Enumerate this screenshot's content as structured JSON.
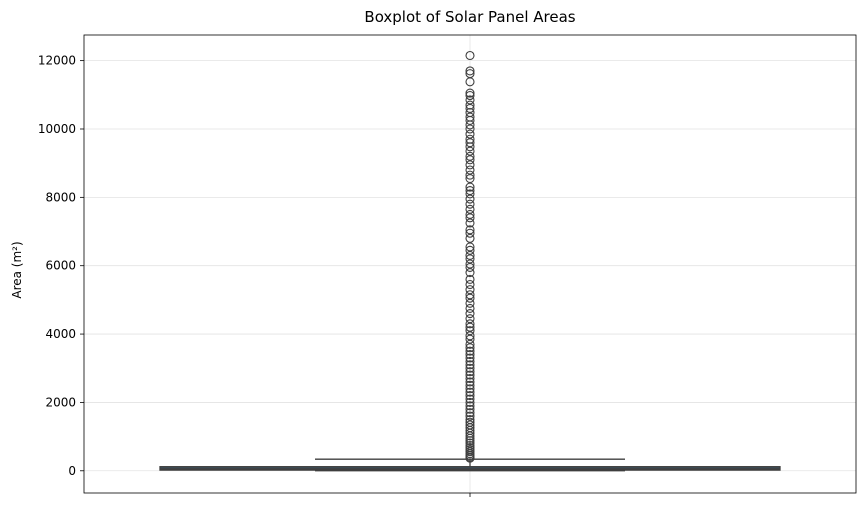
{
  "chart_data": {
    "type": "boxplot",
    "title": "Boxplot of Solar Panel Areas",
    "ylabel": "Area (m²)",
    "xlabel": "",
    "ylim": [
      -650,
      12750
    ],
    "yticks": [
      0,
      2000,
      4000,
      6000,
      8000,
      10000,
      12000
    ],
    "grid": true,
    "box": {
      "whislo": 0,
      "q1": 20,
      "median": 55,
      "q3": 120,
      "whishi": 340,
      "color": "#3a4f5c"
    },
    "fliers": [
      12150,
      11700,
      11620,
      11380,
      11050,
      10980,
      10850,
      10700,
      10600,
      10480,
      10350,
      10250,
      10120,
      10000,
      9850,
      9700,
      9600,
      9480,
      9350,
      9200,
      9100,
      8950,
      8800,
      8650,
      8550,
      8300,
      8200,
      8100,
      7950,
      7800,
      7650,
      7500,
      7400,
      7250,
      7050,
      6950,
      6800,
      6550,
      6450,
      6300,
      6200,
      6050,
      5950,
      5800,
      5600,
      5450,
      5300,
      5150,
      5050,
      4900,
      4750,
      4600,
      4450,
      4300,
      4200,
      4100,
      3950,
      3850,
      3700,
      3600,
      3500,
      3400,
      3300,
      3200,
      3100,
      3000,
      2900,
      2800,
      2700,
      2600,
      2500,
      2400,
      2300,
      2200,
      2100,
      2000,
      1900,
      1800,
      1700,
      1600,
      1500,
      1420,
      1340,
      1260,
      1180,
      1100,
      1020,
      950,
      880,
      810,
      740,
      680,
      620,
      560,
      500,
      450,
      400,
      370
    ]
  }
}
